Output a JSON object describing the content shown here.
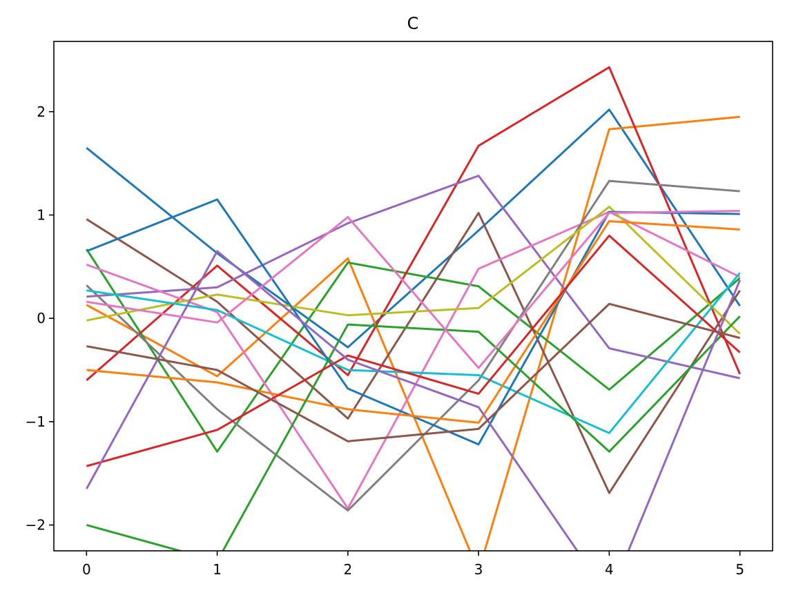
{
  "chart_data": {
    "type": "line",
    "title": "C",
    "xlabel": "",
    "ylabel": "",
    "x": [
      0,
      1,
      2,
      3,
      4,
      5
    ],
    "xlim": [
      -0.25,
      5.25
    ],
    "ylim": [
      -2.25,
      2.68
    ],
    "xticks": [
      0,
      1,
      2,
      3,
      4,
      5
    ],
    "yticks": [
      -2,
      -1,
      0,
      1,
      2
    ],
    "xtick_labels": [
      "0",
      "1",
      "2",
      "3",
      "4",
      "5"
    ],
    "ytick_labels": [
      "−2",
      "−1",
      "0",
      "1",
      "2"
    ],
    "grid": false,
    "legend": "none",
    "series": [
      {
        "color": "#1f77b4",
        "values": [
          1.65,
          0.63,
          -0.28,
          0.85,
          2.02,
          0.12
        ]
      },
      {
        "color": "#ff7f0e",
        "values": [
          0.13,
          -0.56,
          0.58,
          -2.45,
          1.83,
          1.95
        ]
      },
      {
        "color": "#2ca02c",
        "values": [
          0.67,
          -1.29,
          0.54,
          0.31,
          -0.69,
          0.39
        ]
      },
      {
        "color": "#d62728",
        "values": [
          -0.6,
          0.51,
          -0.55,
          1.67,
          2.43,
          -0.54
        ]
      },
      {
        "color": "#9467bd",
        "values": [
          0.21,
          0.3,
          0.92,
          1.38,
          -0.29,
          -0.58
        ]
      },
      {
        "color": "#8c564b",
        "values": [
          0.96,
          0.16,
          -0.97,
          1.02,
          -1.69,
          0.27
        ]
      },
      {
        "color": "#e377c2",
        "values": [
          0.52,
          0.06,
          -1.84,
          0.48,
          1.03,
          0.4
        ]
      },
      {
        "color": "#7f7f7f",
        "values": [
          0.32,
          -0.88,
          -1.86,
          -0.6,
          1.33,
          1.23
        ]
      },
      {
        "color": "#bcbd22",
        "values": [
          -0.02,
          0.23,
          0.03,
          0.1,
          1.08,
          -0.15
        ]
      },
      {
        "color": "#17becf",
        "values": [
          0.27,
          0.08,
          -0.5,
          -0.55,
          -1.11,
          0.44
        ]
      },
      {
        "color": "#1f77b4",
        "values": [
          0.65,
          1.15,
          -0.68,
          -1.22,
          1.03,
          1.01
        ]
      },
      {
        "color": "#ff7f0e",
        "values": [
          -0.5,
          -0.62,
          -0.88,
          -1.01,
          0.94,
          0.86
        ]
      },
      {
        "color": "#2ca02c",
        "values": [
          -2.0,
          -2.35,
          -0.06,
          -0.13,
          -1.29,
          0.02
        ]
      },
      {
        "color": "#d62728",
        "values": [
          -1.43,
          -1.08,
          -0.36,
          -0.73,
          0.8,
          -0.33
        ]
      },
      {
        "color": "#9467bd",
        "values": [
          -1.65,
          0.65,
          -0.4,
          -0.86,
          -2.7,
          0.37
        ]
      },
      {
        "color": "#8c564b",
        "values": [
          -0.27,
          -0.5,
          -1.19,
          -1.07,
          0.14,
          -0.19
        ]
      },
      {
        "color": "#e377c2",
        "values": [
          0.16,
          -0.04,
          0.98,
          -0.48,
          1.02,
          1.04
        ]
      }
    ]
  }
}
